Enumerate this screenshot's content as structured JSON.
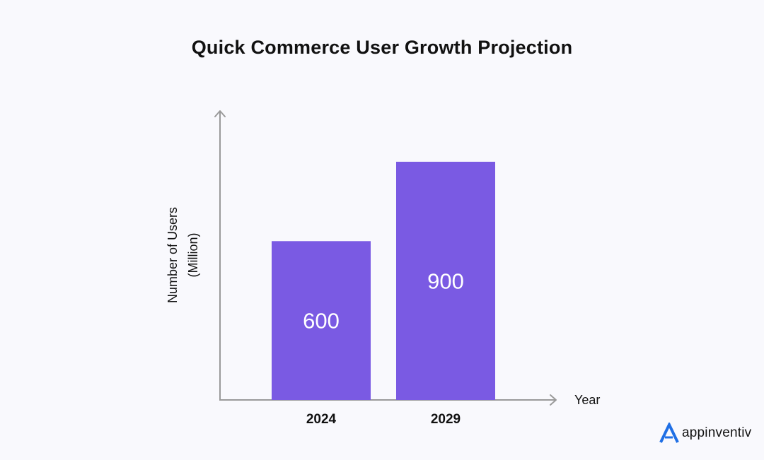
{
  "colors": {
    "bar": "#7a5ae3",
    "axis": "#9a9a9a",
    "background": "#f9f9fd",
    "brand_accent": "#1f6fe5"
  },
  "chart_data": {
    "type": "bar",
    "title": "Quick Commerce User Growth Projection",
    "xlabel": "Year",
    "ylabel_lines": [
      "Number of Users",
      "(Million)"
    ],
    "categories": [
      "2024",
      "2029"
    ],
    "values": [
      600,
      900
    ],
    "data_labels": [
      "600",
      "900"
    ],
    "ylim": [
      0,
      1100
    ],
    "grid": false,
    "legend": "none"
  },
  "brand": {
    "name": "appinventiv",
    "icon": "appinventiv-logo-icon"
  }
}
